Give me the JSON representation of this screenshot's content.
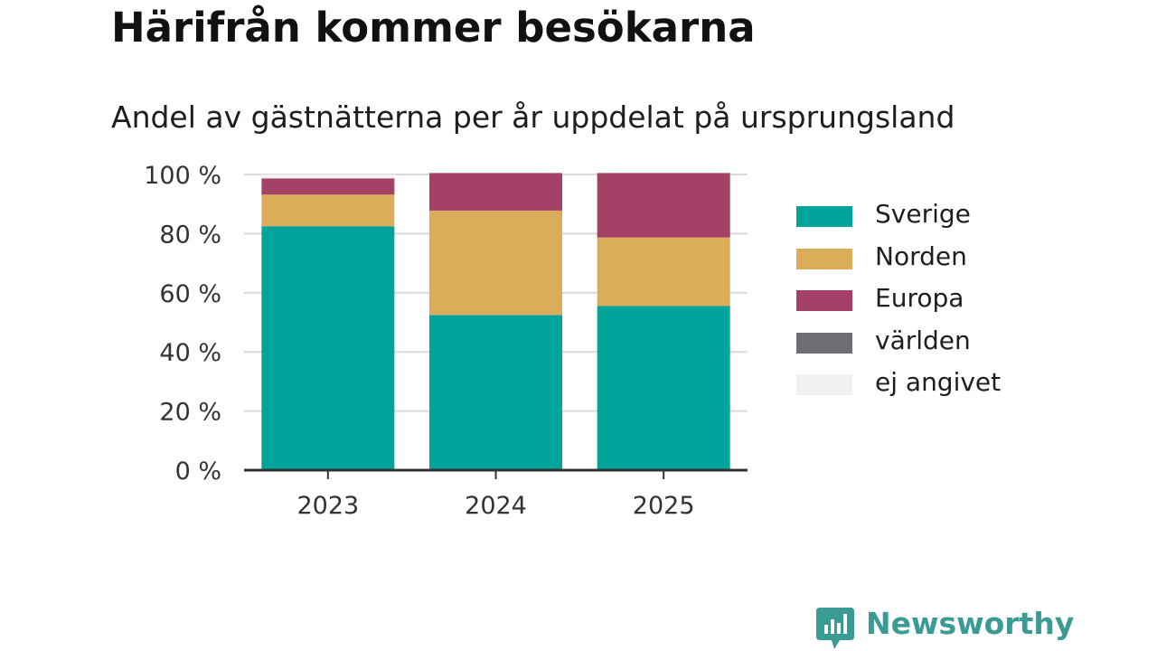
{
  "title": "Härifrån kommer besökarna",
  "subtitle": "Andel av gästnätterna per år uppdelat på ursprungsland",
  "brand": {
    "name": "Newsworthy",
    "icon": "newsworthy-logo-icon",
    "color": "#3a9a94"
  },
  "chart_data": {
    "type": "bar",
    "stacked": true,
    "categories": [
      "2023",
      "2024",
      "2025"
    ],
    "series": [
      {
        "name": "Sverige",
        "color": "#00a49a",
        "values": [
          82.5,
          52.5,
          55.5
        ]
      },
      {
        "name": "Norden",
        "color": "#dbac5a",
        "values": [
          10.7,
          35.3,
          23.2
        ]
      },
      {
        "name": "Europa",
        "color": "#a54066",
        "values": [
          5.5,
          12.7,
          21.8
        ]
      },
      {
        "name": "världen",
        "color": "#6e6e75",
        "values": [
          0.0,
          0.0,
          0.0
        ]
      },
      {
        "name": "ej angivet",
        "color": "#f2f1ef",
        "values": [
          1.3,
          0.0,
          0.0
        ]
      }
    ],
    "y_ticks": [
      "0 %",
      "20 %",
      "40 %",
      "60 %",
      "80 %",
      "100 %"
    ],
    "ylim": [
      0,
      100
    ],
    "xlabel": "",
    "ylabel": "",
    "grid": true,
    "legend_position": "right"
  }
}
